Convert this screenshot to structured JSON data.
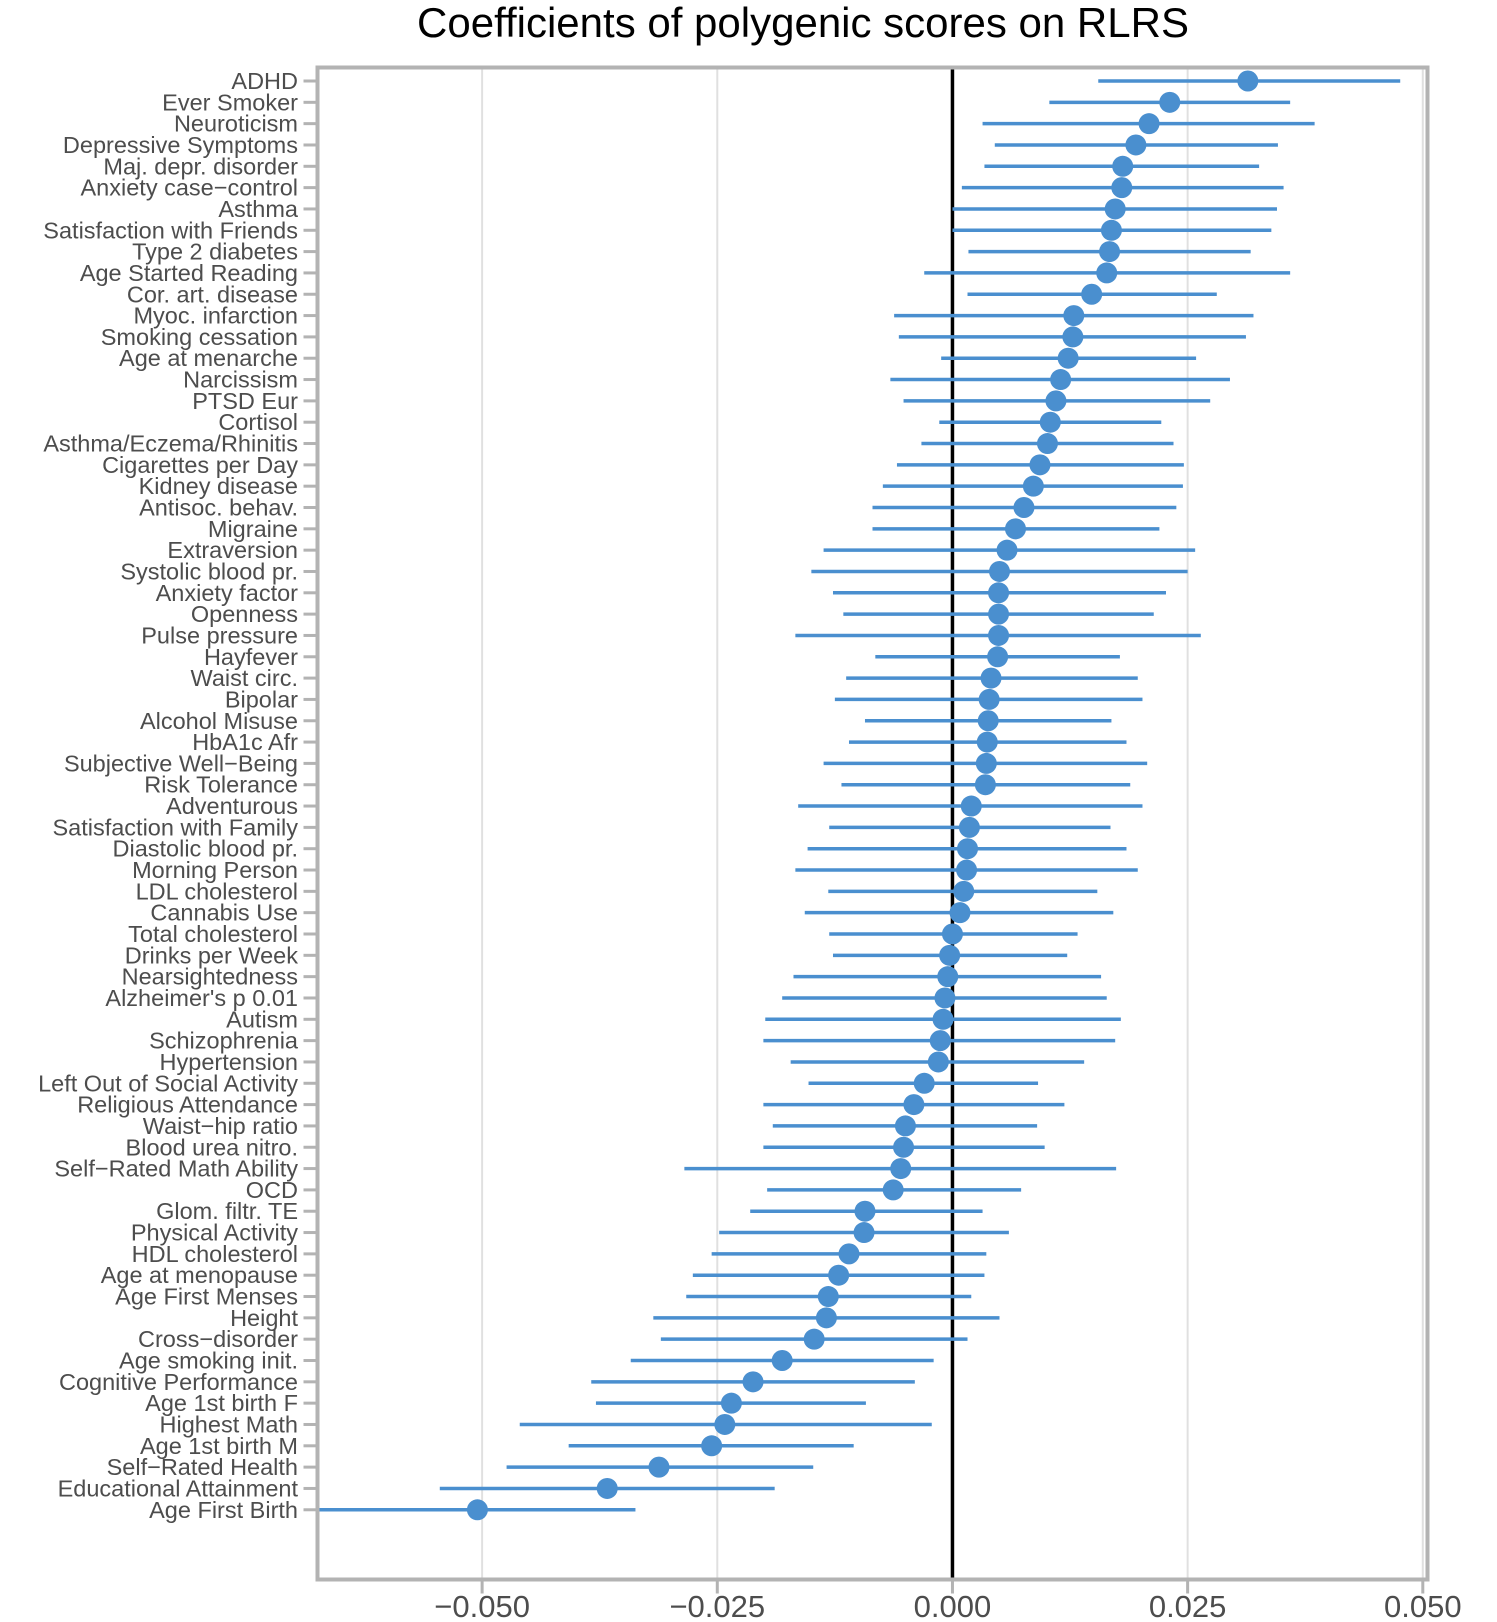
{
  "chart_data": {
    "type": "scatter",
    "title": "Coefficients of polygenic scores on RLRS",
    "xlabel": "",
    "ylabel": "",
    "xlim": [
      -0.0675,
      0.0505
    ],
    "xticks": [
      -0.05,
      -0.025,
      0.0,
      0.025,
      0.05
    ],
    "xtick_labels": [
      "−0.050",
      "−0.025",
      "0.000",
      "0.025",
      "0.050"
    ],
    "reference_line_x": 0.0,
    "grid": "vertical",
    "legend": "none",
    "point_color": "#4a8fcf",
    "categories": [
      "ADHD",
      "Ever Smoker",
      "Neuroticism",
      "Depressive Symptoms",
      "Maj. depr. disorder",
      "Anxiety case−control",
      "Asthma",
      "Satisfaction with Friends",
      "Type 2 diabetes",
      "Age Started Reading",
      "Cor. art. disease",
      "Myoc. infarction",
      "Smoking cessation",
      "Age at menarche",
      "Narcissism",
      "PTSD Eur",
      "Cortisol",
      "Asthma/Eczema/Rhinitis",
      "Cigarettes per Day",
      "Kidney disease",
      "Antisoc. behav.",
      "Migraine",
      "Extraversion",
      "Systolic blood pr.",
      "Anxiety factor",
      "Openness",
      "Pulse pressure",
      "Hayfever",
      "Waist circ.",
      "Bipolar",
      "Alcohol Misuse",
      "HbA1c Afr",
      "Subjective Well−Being",
      "Risk Tolerance",
      "Adventurous",
      "Satisfaction with Family",
      "Diastolic blood pr.",
      "Morning Person",
      "LDL cholesterol",
      "Cannabis Use",
      "Total cholesterol",
      "Drinks per Week",
      "Nearsightedness",
      "Alzheimer's p 0.01",
      "Autism",
      "Schizophrenia",
      "Hypertension",
      "Left Out of Social Activity",
      "Religious Attendance",
      "Waist−hip ratio",
      "Blood urea nitro.",
      "Self−Rated Math Ability",
      "OCD",
      "Glom. filtr. TE",
      "Physical Activity",
      "HDL cholesterol",
      "Age at menopause",
      "Age First Menses",
      "Height",
      "Cross−disorder",
      "Age smoking init.",
      "Cognitive Performance",
      "Age 1st birth F",
      "Highest Math",
      "Age 1st birth M",
      "Self−Rated Health",
      "Educational Attainment",
      "Age First Birth"
    ],
    "estimates": [
      0.0314,
      0.0231,
      0.0209,
      0.0195,
      0.0181,
      0.018,
      0.0173,
      0.0169,
      0.0167,
      0.0164,
      0.0148,
      0.0129,
      0.0128,
      0.0123,
      0.0115,
      0.011,
      0.0104,
      0.0101,
      0.0093,
      0.0086,
      0.0076,
      0.0067,
      0.0058,
      0.005,
      0.0049,
      0.0049,
      0.0049,
      0.0048,
      0.0041,
      0.0039,
      0.0038,
      0.0037,
      0.0036,
      0.0035,
      0.002,
      0.0018,
      0.0016,
      0.0015,
      0.0012,
      0.0008,
      0.0,
      -0.0003,
      -0.0005,
      -0.0008,
      -0.001,
      -0.0013,
      -0.0015,
      -0.003,
      -0.0041,
      -0.005,
      -0.0052,
      -0.0055,
      -0.0063,
      -0.0093,
      -0.0094,
      -0.011,
      -0.0121,
      -0.0132,
      -0.0134,
      -0.0147,
      -0.0181,
      -0.0212,
      -0.0235,
      -0.0242,
      -0.0256,
      -0.0312,
      -0.0367,
      -0.0505
    ],
    "ci_lower": [
      0.0155,
      0.0103,
      0.0032,
      0.0045,
      0.0034,
      0.001,
      0.0,
      0.0,
      0.0017,
      -0.003,
      0.0016,
      -0.0062,
      -0.0057,
      -0.0012,
      -0.0066,
      -0.0052,
      -0.0014,
      -0.0033,
      -0.0059,
      -0.0074,
      -0.0085,
      -0.0085,
      -0.0137,
      -0.015,
      -0.0127,
      -0.0116,
      -0.0167,
      -0.0082,
      -0.0113,
      -0.0125,
      -0.0093,
      -0.011,
      -0.0137,
      -0.0118,
      -0.0164,
      -0.0131,
      -0.0154,
      -0.0167,
      -0.0132,
      -0.0157,
      -0.0131,
      -0.0127,
      -0.0169,
      -0.0181,
      -0.0199,
      -0.0201,
      -0.0172,
      -0.0153,
      -0.0201,
      -0.0191,
      -0.0201,
      -0.0285,
      -0.0197,
      -0.0215,
      -0.0248,
      -0.0256,
      -0.0276,
      -0.0283,
      -0.0318,
      -0.031,
      -0.0342,
      -0.0384,
      -0.0379,
      -0.046,
      -0.0408,
      -0.0474,
      -0.0545,
      -0.0673
    ],
    "ci_upper": [
      0.0476,
      0.0359,
      0.0385,
      0.0346,
      0.0326,
      0.0352,
      0.0345,
      0.0339,
      0.0317,
      0.0359,
      0.0281,
      0.032,
      0.0312,
      0.0259,
      0.0295,
      0.0274,
      0.0222,
      0.0235,
      0.0246,
      0.0245,
      0.0238,
      0.022,
      0.0258,
      0.025,
      0.0227,
      0.0214,
      0.0264,
      0.0178,
      0.0197,
      0.0202,
      0.0169,
      0.0185,
      0.0207,
      0.0189,
      0.0202,
      0.0168,
      0.0185,
      0.0197,
      0.0154,
      0.0171,
      0.0133,
      0.0122,
      0.0158,
      0.0164,
      0.0179,
      0.0173,
      0.014,
      0.0091,
      0.0119,
      0.009,
      0.0098,
      0.0174,
      0.0073,
      0.0032,
      0.006,
      0.0036,
      0.0034,
      0.002,
      0.005,
      0.0016,
      -0.002,
      -0.004,
      -0.0092,
      -0.0022,
      -0.0105,
      -0.0148,
      -0.0189,
      -0.0337
    ]
  }
}
